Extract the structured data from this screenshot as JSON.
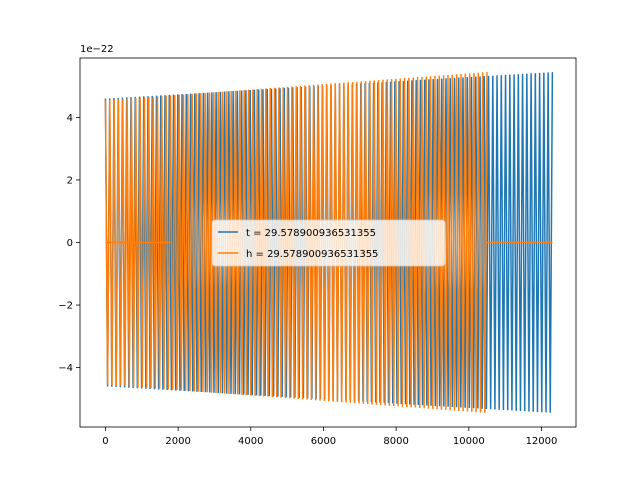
{
  "chart_data": {
    "type": "line",
    "title": "",
    "xlabel": "",
    "ylabel": "",
    "y_offset_label": "1e−22",
    "xlim": [
      -700,
      12950
    ],
    "ylim": [
      -5.9,
      5.9
    ],
    "x_ticks": [
      0,
      2000,
      4000,
      6000,
      8000,
      10000,
      12000
    ],
    "x_tick_labels": [
      "0",
      "2000",
      "4000",
      "6000",
      "8000",
      "10000",
      "12000"
    ],
    "y_ticks": [
      -4,
      -2,
      0,
      2,
      4
    ],
    "y_tick_labels": [
      "−4",
      "−2",
      "0",
      "2",
      "4"
    ],
    "grid": false,
    "legend_placement": "center",
    "series": [
      {
        "name": "t = 29.578900936531355",
        "color": "#1f77b4",
        "x_start": 0,
        "x_end": 12300,
        "amplitude_start": 4.6,
        "amplitude_end": 5.45,
        "cycles": 105,
        "zero_segments": []
      },
      {
        "name": "h = 29.578900936531355",
        "color": "#ff7f0e",
        "x_start": 0,
        "x_end": 10500,
        "amplitude_start": 4.55,
        "amplitude_end": 5.45,
        "cycles": 88,
        "zero_segments": [
          [
            0,
            1800
          ],
          [
            10500,
            12300
          ]
        ]
      }
    ]
  }
}
